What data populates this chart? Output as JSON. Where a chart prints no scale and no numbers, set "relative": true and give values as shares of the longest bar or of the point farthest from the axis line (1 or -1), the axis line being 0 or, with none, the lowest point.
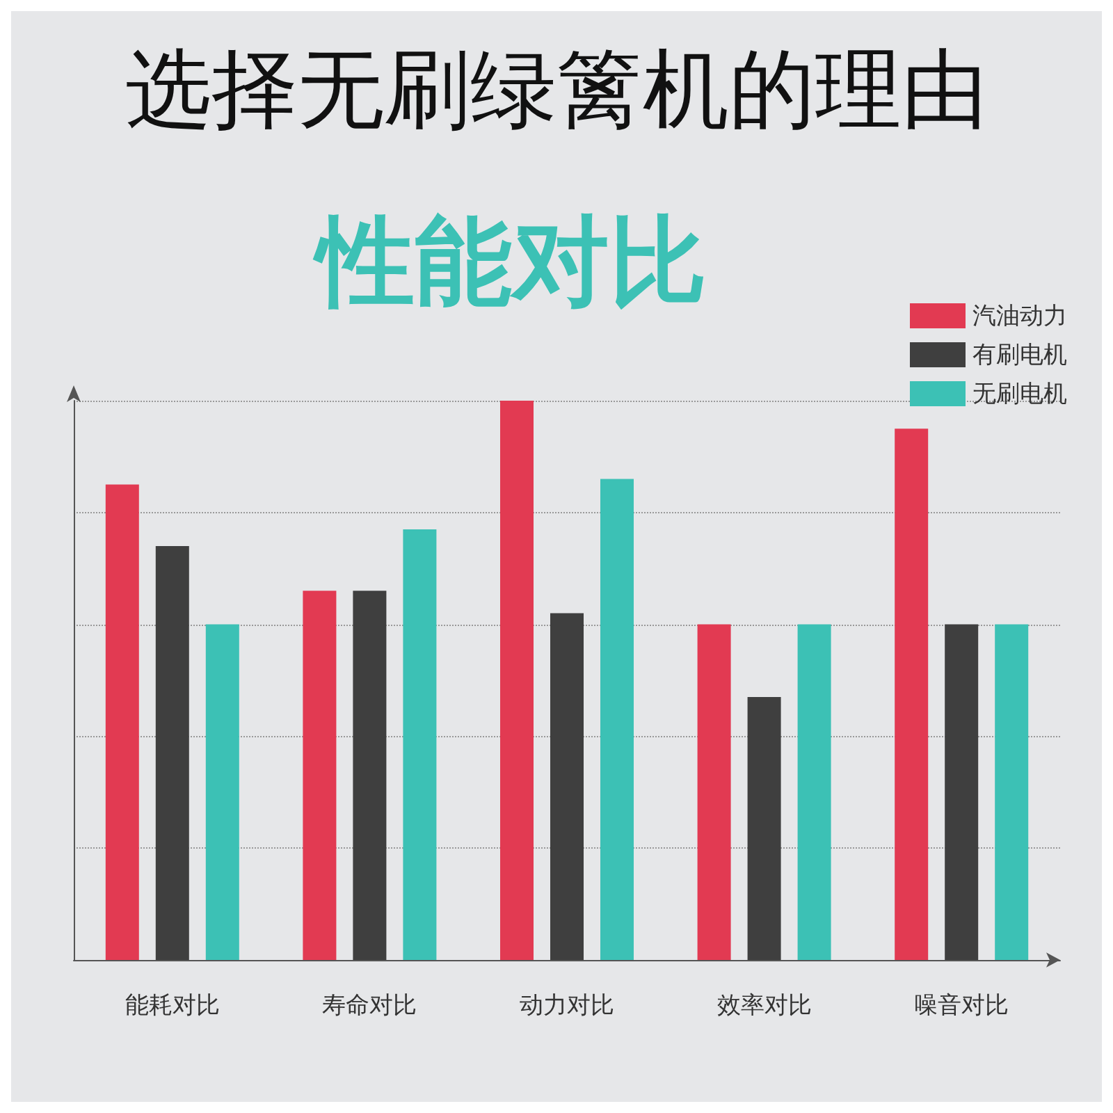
{
  "chart_data": {
    "type": "bar",
    "title": "选择无刷绿篱机的理由",
    "subtitle": "性能对比",
    "relative": true,
    "categories": [
      "能耗对比",
      "寿命对比",
      "动力对比",
      "效率对比",
      "噪音对比"
    ],
    "series": [
      {
        "name": "汽油动力",
        "color": "#e23a52",
        "values": [
          0.85,
          0.66,
          1,
          0.6,
          0.95
        ]
      },
      {
        "name": "有刷电机",
        "color": "#3f3f3f",
        "values": [
          0.74,
          0.66,
          0.62,
          0.47,
          0.6
        ]
      },
      {
        "name": "无刷电机",
        "color": "#3cc1b5",
        "values": [
          0.6,
          0.77,
          0.86,
          0.6,
          0.6
        ]
      }
    ],
    "grid": "y",
    "legend": "top right"
  }
}
